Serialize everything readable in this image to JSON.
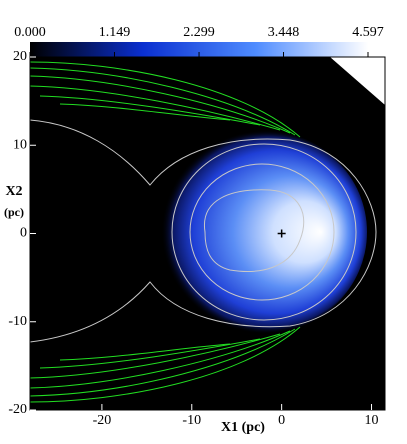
{
  "chart_data": {
    "type": "heatmap",
    "colorbar": {
      "lim": [
        0,
        4.597
      ],
      "colormap": [
        "#000000",
        "#0a2fd0",
        "#4f8cff",
        "#ffffff"
      ],
      "ticks": [
        {
          "value": 0,
          "label": "0.000"
        },
        {
          "value": 1.149,
          "label": "1.149"
        },
        {
          "value": 2.299,
          "label": "2.299"
        },
        {
          "value": 3.448,
          "label": "3.448"
        },
        {
          "value": 4.597,
          "label": "4.597"
        }
      ]
    },
    "xlabel": "X1 (pc)",
    "ylabel": [
      "X2",
      "(pc)"
    ],
    "xlim": [
      -28,
      11.5
    ],
    "ylim": [
      -20,
      20
    ],
    "xticks": [
      -20,
      -10,
      0,
      10
    ],
    "yticks": [
      -20,
      -10,
      0,
      10,
      20
    ],
    "marker": [
      0,
      0
    ]
  }
}
